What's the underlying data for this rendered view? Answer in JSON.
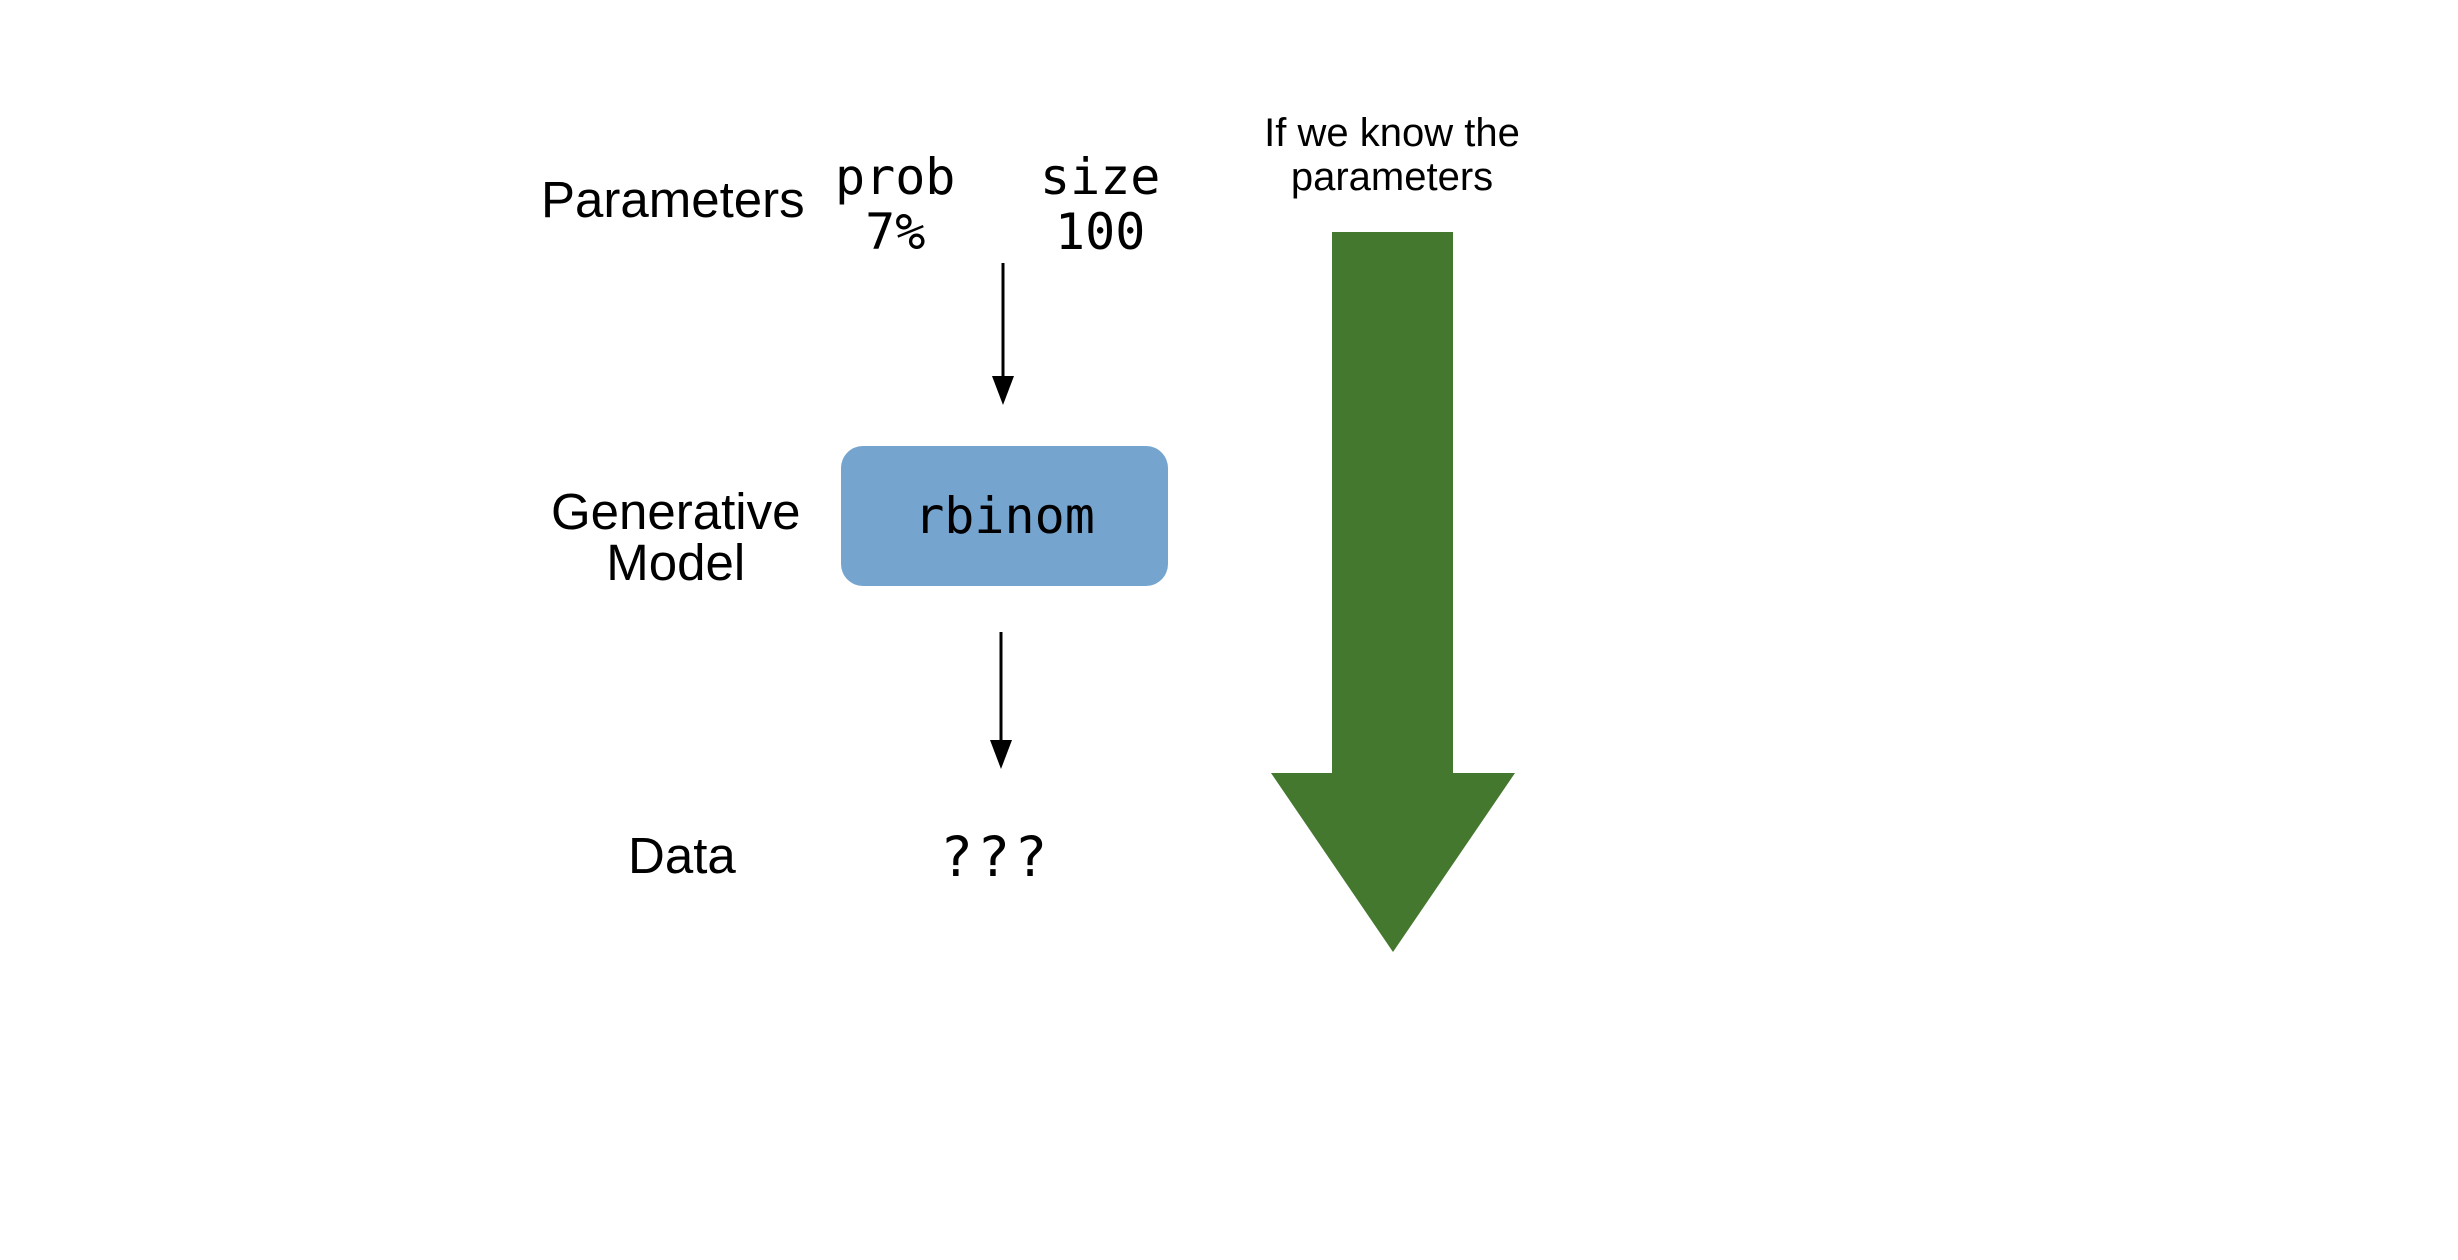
{
  "rows": {
    "parameters": "Parameters",
    "generative_model": [
      "Generative",
      "Model"
    ],
    "data": "Data"
  },
  "parameters": [
    {
      "name": "prob",
      "value": "7%"
    },
    {
      "name": "size",
      "value": "100"
    }
  ],
  "model": {
    "name": "rbinom",
    "color": "#75a4cf"
  },
  "data_value": "???",
  "direction": {
    "caption": [
      "If we know the",
      "parameters"
    ],
    "arrow_color": "#44782f",
    "arrow": "down-arrow-icon"
  },
  "connectors": [
    "arrow-down-icon",
    "arrow-down-icon"
  ]
}
